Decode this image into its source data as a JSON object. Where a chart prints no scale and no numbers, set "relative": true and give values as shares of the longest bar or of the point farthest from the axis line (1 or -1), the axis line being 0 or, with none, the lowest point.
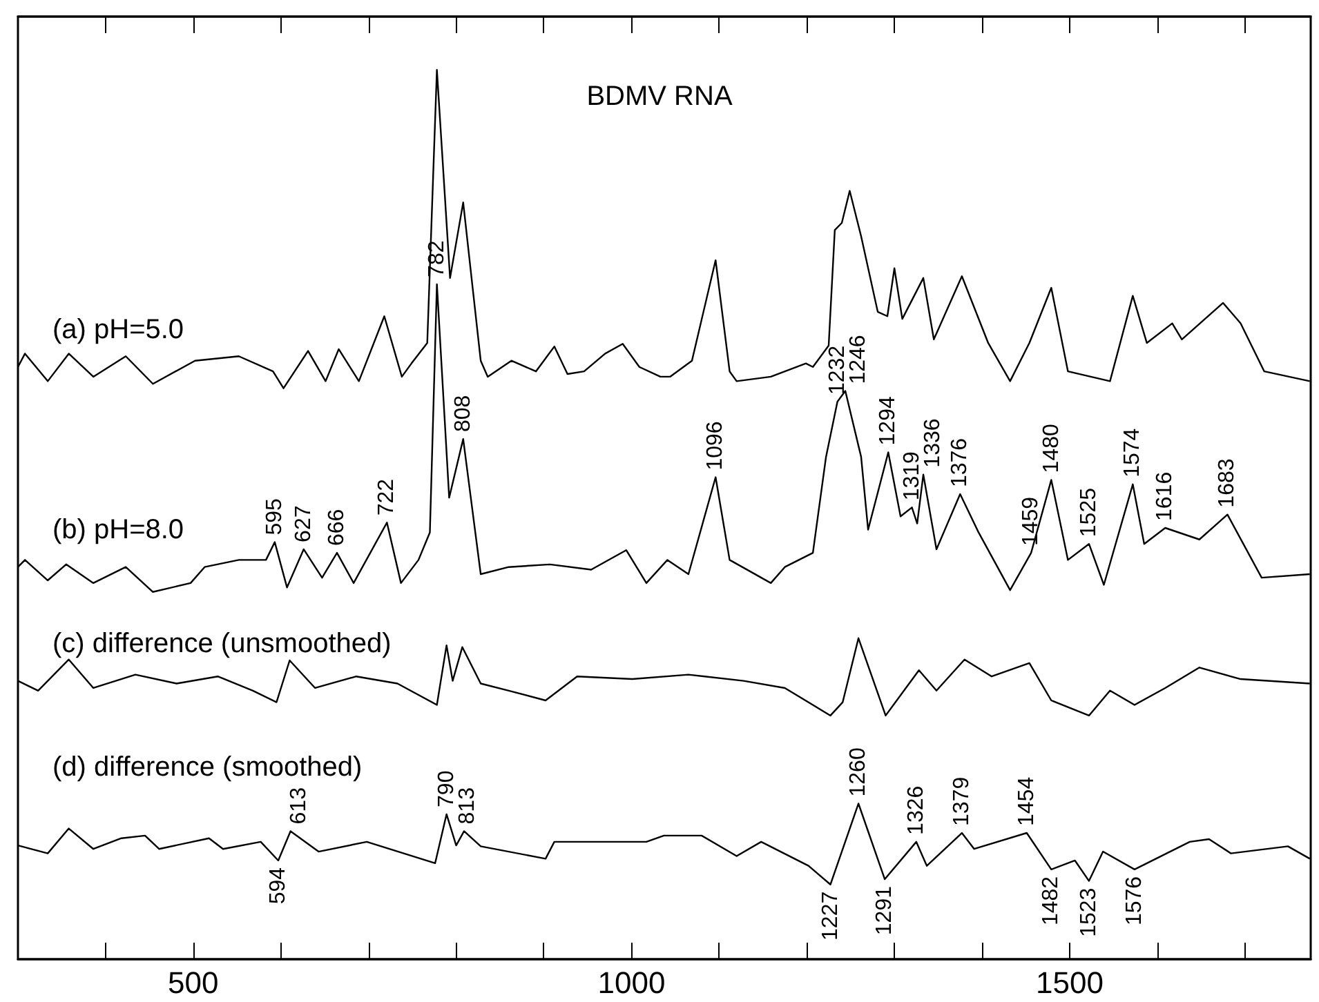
{
  "chart_data": {
    "type": "line",
    "title": "BDMV RNA",
    "relative": true,
    "legend": false,
    "grid": false,
    "marker": "none",
    "line_style": "solid",
    "xlim": [
      300,
      1775
    ],
    "xticks": [
      {
        "value": 400,
        "label": null
      },
      500,
      {
        "value": 600,
        "label": null
      },
      {
        "value": 700,
        "label": null
      },
      {
        "value": 800,
        "label": null
      },
      {
        "value": 900,
        "label": null
      },
      1000,
      {
        "value": 1100,
        "label": null
      },
      {
        "value": 1200,
        "label": null
      },
      {
        "value": 1300,
        "label": null
      },
      {
        "value": 1400,
        "label": null
      },
      1500,
      {
        "value": 1600,
        "label": null
      },
      {
        "value": 1700,
        "label": null
      }
    ],
    "series": [
      {
        "name": "(a) pH=5.0",
        "color": "#000000",
        "x": [
          300,
          308,
          334,
          358,
          386,
          423,
          454,
          502,
          552,
          591,
          603,
          631,
          651,
          666,
          689,
          718,
          738,
          749,
          767,
          778,
          793,
          808,
          828,
          836,
          863,
          891,
          912,
          927,
          946,
          970,
          990,
          1009,
          1033,
          1044,
          1069,
          1096,
          1112,
          1120,
          1159,
          1199,
          1207,
          1225,
          1232,
          1240,
          1249,
          1262,
          1281,
          1292,
          1300,
          1309,
          1333,
          1345,
          1377,
          1407,
          1432,
          1454,
          1479,
          1498,
          1546,
          1572,
          1588,
          1617,
          1628,
          1675,
          1695,
          1722,
          1774
        ],
        "values": [
          0.666,
          0.681,
          0.65,
          0.681,
          0.655,
          0.678,
          0.647,
          0.673,
          0.678,
          0.661,
          0.642,
          0.684,
          0.65,
          0.686,
          0.65,
          0.723,
          0.655,
          0.67,
          0.693,
          1.0,
          0.766,
          0.851,
          0.673,
          0.655,
          0.673,
          0.661,
          0.689,
          0.658,
          0.661,
          0.681,
          0.692,
          0.666,
          0.655,
          0.655,
          0.673,
          0.786,
          0.661,
          0.65,
          0.655,
          0.67,
          0.666,
          0.69,
          0.82,
          0.828,
          0.864,
          0.813,
          0.728,
          0.723,
          0.777,
          0.72,
          0.766,
          0.697,
          0.768,
          0.693,
          0.65,
          0.693,
          0.755,
          0.661,
          0.65,
          0.746,
          0.693,
          0.715,
          0.697,
          0.738,
          0.715,
          0.661,
          0.65
        ]
      },
      {
        "name": "(b) pH=8.0",
        "color": "#000000",
        "x": [
          300,
          308,
          334,
          355,
          386,
          423,
          454,
          497,
          513,
          552,
          583,
          593,
          607,
          626,
          647,
          664,
          683,
          721,
          737,
          757,
          770,
          778,
          792,
          808,
          828,
          860,
          907,
          954,
          994,
          1017,
          1041,
          1065,
          1096,
          1112,
          1159,
          1175,
          1207,
          1222,
          1235,
          1244,
          1262,
          1270,
          1293,
          1307,
          1320,
          1326,
          1333,
          1348,
          1375,
          1396,
          1432,
          1456,
          1479,
          1498,
          1522,
          1539,
          1572,
          1585,
          1609,
          1648,
          1680,
          1719,
          1774
        ],
        "values": [
          0.441,
          0.449,
          0.426,
          0.444,
          0.423,
          0.441,
          0.413,
          0.423,
          0.441,
          0.449,
          0.449,
          0.469,
          0.418,
          0.461,
          0.429,
          0.457,
          0.423,
          0.491,
          0.423,
          0.449,
          0.48,
          0.759,
          0.519,
          0.585,
          0.433,
          0.441,
          0.444,
          0.438,
          0.46,
          0.423,
          0.449,
          0.433,
          0.542,
          0.449,
          0.423,
          0.441,
          0.457,
          0.565,
          0.627,
          0.639,
          0.565,
          0.483,
          0.57,
          0.498,
          0.508,
          0.49,
          0.545,
          0.461,
          0.523,
          0.48,
          0.415,
          0.457,
          0.539,
          0.449,
          0.467,
          0.421,
          0.534,
          0.467,
          0.485,
          0.472,
          0.5,
          0.429,
          0.433
        ]
      },
      {
        "name": "(c) difference (unsmoothed)",
        "color": "#000000",
        "x": [
          300,
          323,
          358,
          386,
          434,
          481,
          528,
          568,
          595,
          610,
          639,
          686,
          733,
          778,
          789,
          796,
          807,
          828,
          860,
          902,
          938,
          1001,
          1065,
          1128,
          1175,
          1227,
          1241,
          1259,
          1290,
          1328,
          1348,
          1380,
          1411,
          1454,
          1479,
          1522,
          1546,
          1574,
          1609,
          1648,
          1695,
          1774
        ],
        "values": [
          0.313,
          0.302,
          0.337,
          0.305,
          0.32,
          0.31,
          0.318,
          0.302,
          0.289,
          0.336,
          0.305,
          0.318,
          0.31,
          0.286,
          0.353,
          0.313,
          0.351,
          0.31,
          0.302,
          0.291,
          0.318,
          0.315,
          0.32,
          0.313,
          0.305,
          0.274,
          0.289,
          0.361,
          0.274,
          0.325,
          0.302,
          0.337,
          0.318,
          0.333,
          0.291,
          0.274,
          0.302,
          0.286,
          0.305,
          0.328,
          0.315,
          0.31
        ]
      },
      {
        "name": "(d) difference (smoothed)",
        "color": "#000000",
        "x": [
          300,
          334,
          358,
          386,
          418,
          445,
          461,
          518,
          534,
          577,
          597,
          611,
          643,
          698,
          776,
          789,
          800,
          809,
          828,
          902,
          912,
          1017,
          1037,
          1080,
          1120,
          1148,
          1202,
          1227,
          1259,
          1289,
          1325,
          1337,
          1377,
          1391,
          1451,
          1479,
          1506,
          1522,
          1538,
          1574,
          1637,
          1659,
          1684,
          1749,
          1774
        ],
        "values": [
          0.128,
          0.119,
          0.147,
          0.124,
          0.136,
          0.139,
          0.124,
          0.136,
          0.124,
          0.132,
          0.111,
          0.144,
          0.121,
          0.132,
          0.108,
          0.163,
          0.128,
          0.144,
          0.127,
          0.113,
          0.132,
          0.132,
          0.139,
          0.139,
          0.116,
          0.132,
          0.105,
          0.084,
          0.175,
          0.09,
          0.132,
          0.105,
          0.142,
          0.124,
          0.142,
          0.101,
          0.111,
          0.088,
          0.121,
          0.101,
          0.132,
          0.135,
          0.119,
          0.127,
          0.113
        ]
      }
    ],
    "annotations": [
      {
        "text": "595",
        "x": 593,
        "y": 0.469
      },
      {
        "text": "627",
        "x": 626,
        "y": 0.461
      },
      {
        "text": "666",
        "x": 664,
        "y": 0.457
      },
      {
        "text": "722",
        "x": 721,
        "y": 0.491
      },
      {
        "text": "782",
        "x": 778,
        "y": 0.759
      },
      {
        "text": "808",
        "x": 808,
        "y": 0.585
      },
      {
        "text": "1096",
        "x": 1096,
        "y": 0.542
      },
      {
        "text": "1232",
        "x": 1235,
        "y": 0.627
      },
      {
        "text": "1246",
        "x": 1244,
        "y": 0.639
      },
      {
        "text": "1294",
        "x": 1293,
        "y": 0.57
      },
      {
        "text": "1319",
        "x": 1320,
        "y": 0.508
      },
      {
        "text": "1336",
        "x": 1333,
        "y": 0.545
      },
      {
        "text": "1376",
        "x": 1375,
        "y": 0.523
      },
      {
        "text": "1459",
        "x": 1456,
        "y": 0.457
      },
      {
        "text": "1480",
        "x": 1479,
        "y": 0.539
      },
      {
        "text": "1525",
        "x": 1522,
        "y": 0.467
      },
      {
        "text": "1574",
        "x": 1572,
        "y": 0.534
      },
      {
        "text": "1616",
        "x": 1609,
        "y": 0.485
      },
      {
        "text": "1683",
        "x": 1680,
        "y": 0.5
      },
      {
        "text": "594",
        "x": 597,
        "y": 0.111
      },
      {
        "text": "613",
        "x": 611,
        "y": 0.144
      },
      {
        "text": "790",
        "x": 789,
        "y": 0.163
      },
      {
        "text": "813",
        "x": 809,
        "y": 0.144
      },
      {
        "text": "1227",
        "x": 1227,
        "y": 0.084
      },
      {
        "text": "1260",
        "x": 1259,
        "y": 0.175
      },
      {
        "text": "1291",
        "x": 1289,
        "y": 0.09
      },
      {
        "text": "1326",
        "x": 1325,
        "y": 0.132
      },
      {
        "text": "1379",
        "x": 1377,
        "y": 0.142
      },
      {
        "text": "1454",
        "x": 1451,
        "y": 0.142
      },
      {
        "text": "1482",
        "x": 1479,
        "y": 0.101
      },
      {
        "text": "1523",
        "x": 1522,
        "y": 0.088
      },
      {
        "text": "1576",
        "x": 1574,
        "y": 0.101
      }
    ]
  }
}
